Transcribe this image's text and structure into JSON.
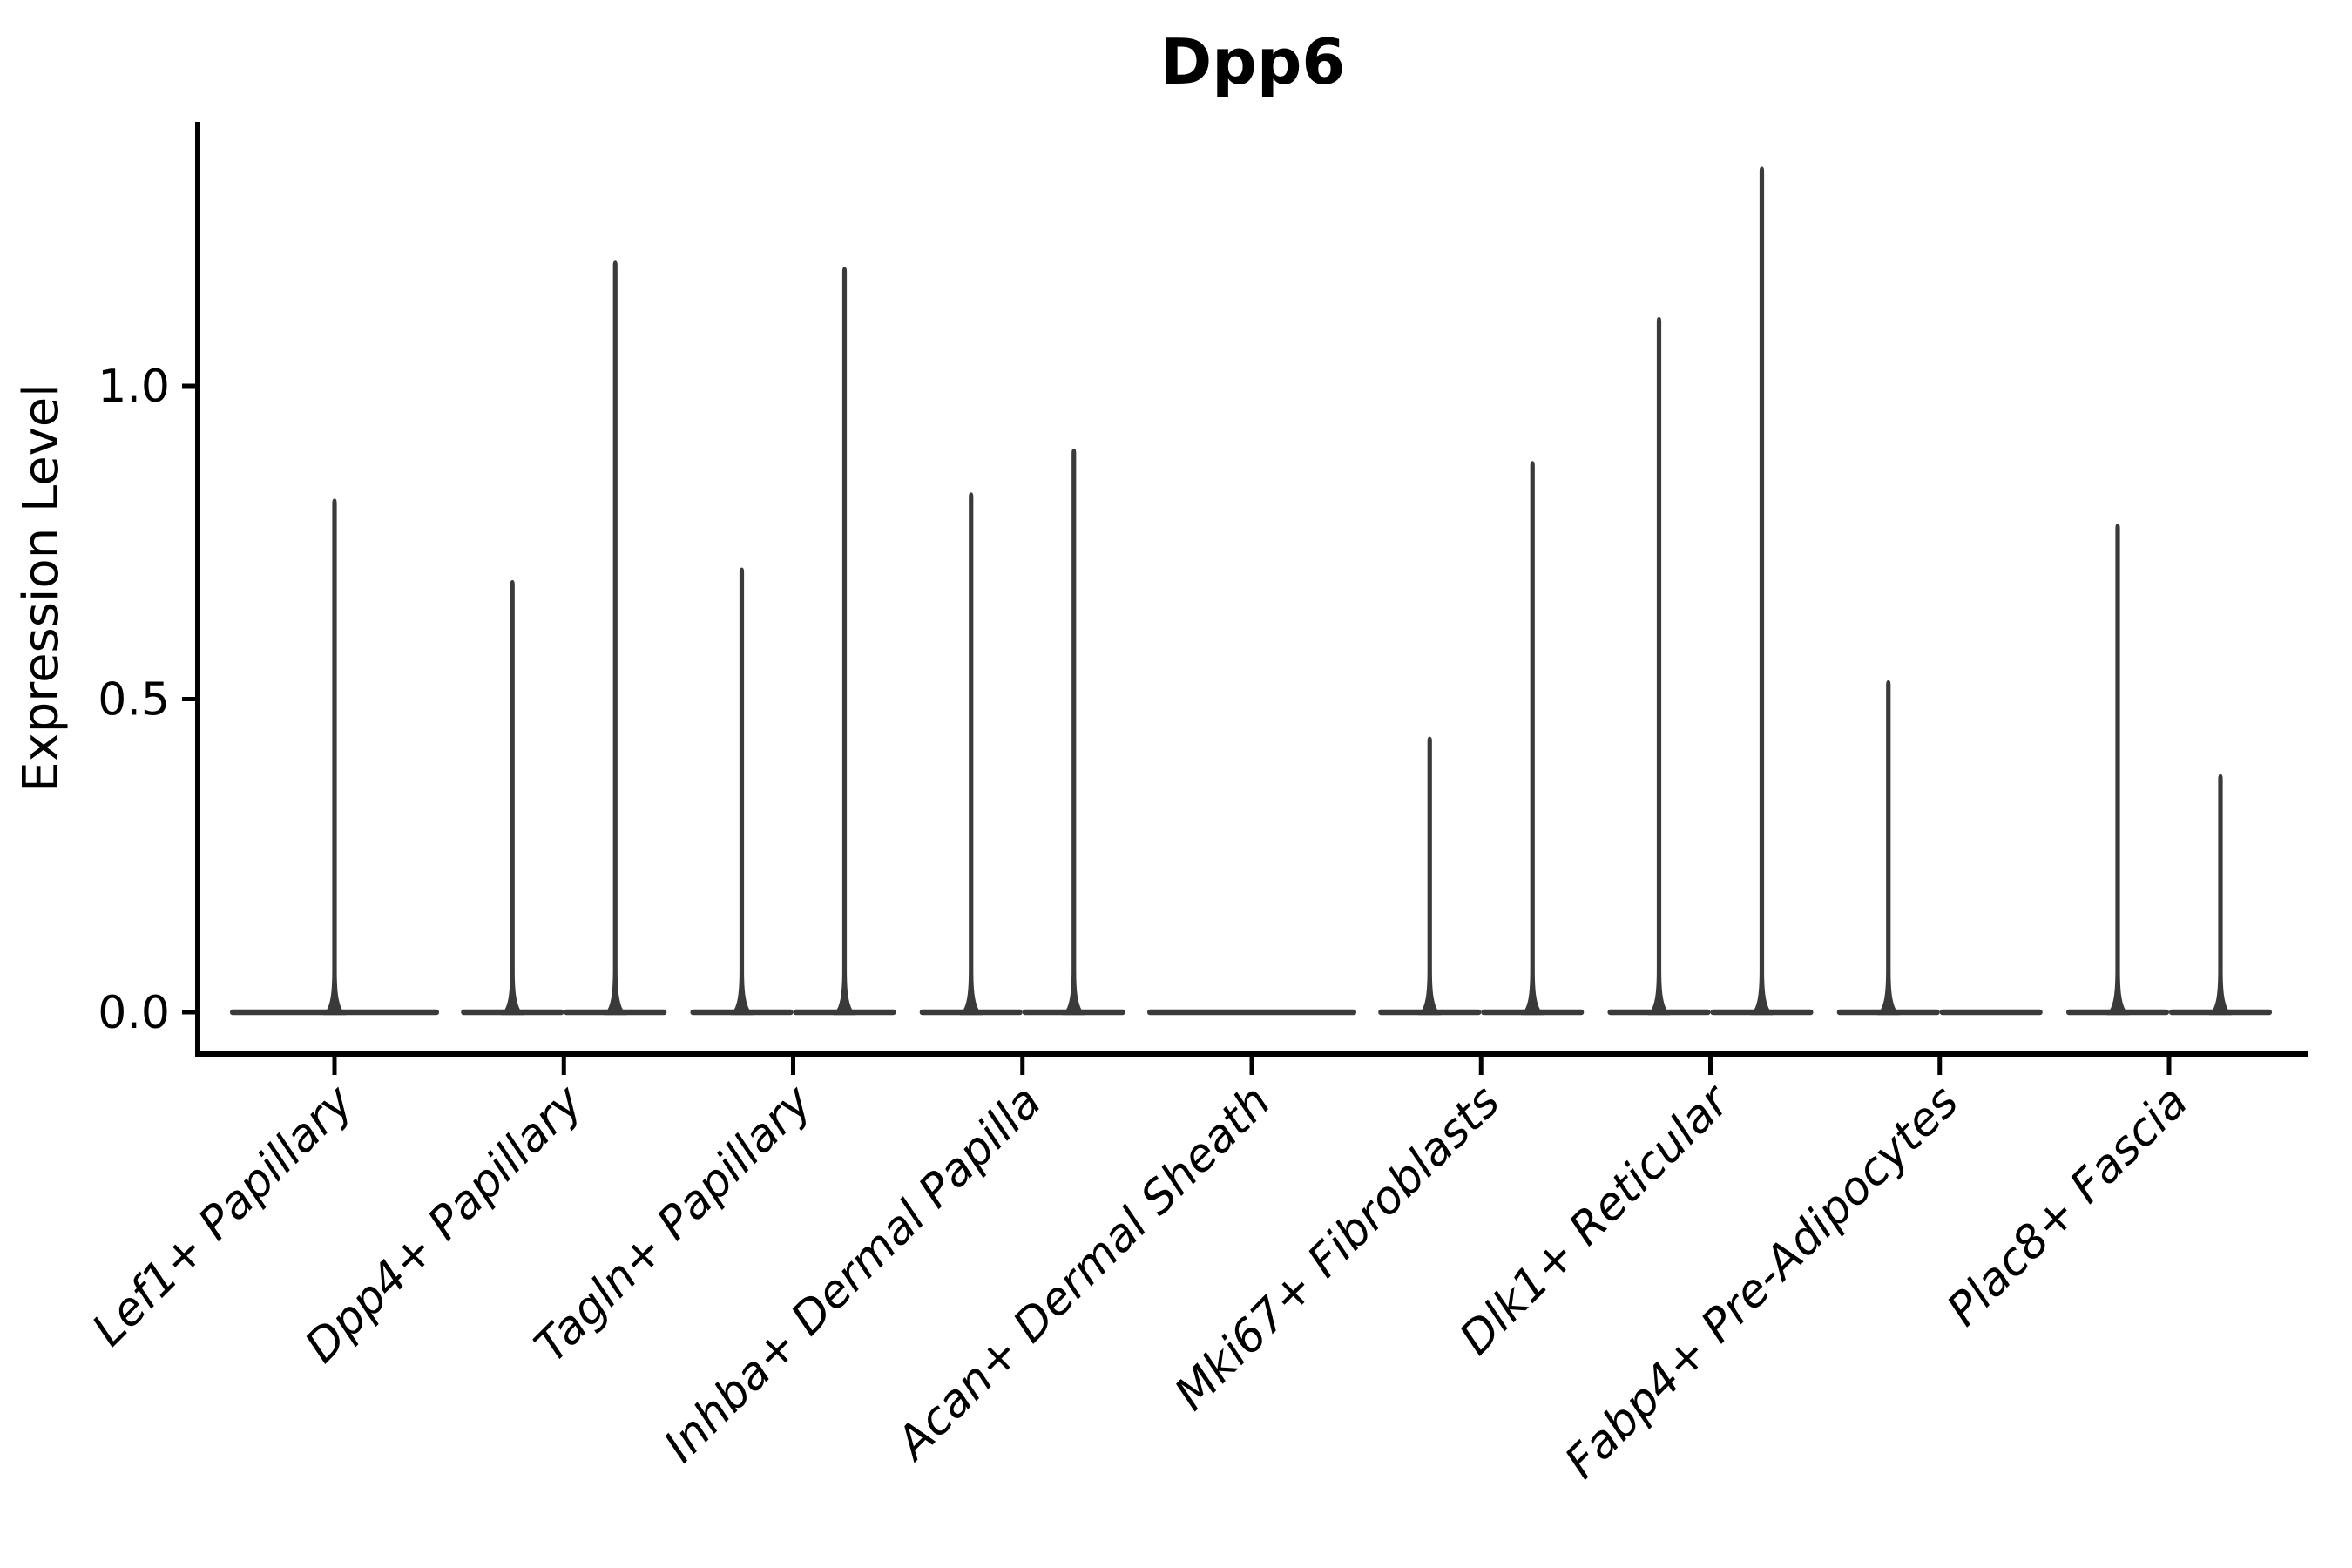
{
  "chart_data": {
    "type": "violin",
    "title": "Dpp6",
    "xlabel": "",
    "ylabel": "Expression Level",
    "ylim": [
      0,
      1.42
    ],
    "yticks": [
      {
        "value": 0.0,
        "label": "0.0"
      },
      {
        "value": 0.5,
        "label": "0.5"
      },
      {
        "value": 1.0,
        "label": "1.0"
      }
    ],
    "grid": false,
    "legend": "none",
    "violin_color": "#3a3a3a",
    "axis_color": "#000000",
    "background_color": "#ffffff",
    "categories": [
      "Lef1+ Papillary",
      "Dpp4+ Papillary",
      "Tagln+ Papillary",
      "Inhba+ Dermal Papilla",
      "Acan+ Dermal Sheath",
      "Mki67+ Fibroblasts",
      "Dlk1+ Reticular",
      "Fabp4+ Pre-Adipocytes",
      "Plac8+ Fascia"
    ],
    "groups": [
      {
        "category": "Lef1+ Papillary",
        "violins": [
          {
            "position": "center",
            "peak": 0.82
          }
        ]
      },
      {
        "category": "Dpp4+ Papillary",
        "violins": [
          {
            "position": "left",
            "peak": 0.69
          },
          {
            "position": "right",
            "peak": 1.2
          }
        ]
      },
      {
        "category": "Tagln+ Papillary",
        "violins": [
          {
            "position": "left",
            "peak": 0.71
          },
          {
            "position": "right",
            "peak": 1.19
          }
        ]
      },
      {
        "category": "Inhba+ Dermal Papilla",
        "violins": [
          {
            "position": "left",
            "peak": 0.83
          },
          {
            "position": "right",
            "peak": 0.9
          }
        ]
      },
      {
        "category": "Acan+ Dermal Sheath",
        "violins": [
          {
            "position": "center",
            "peak": 0.0
          }
        ]
      },
      {
        "category": "Mki67+ Fibroblasts",
        "violins": [
          {
            "position": "left",
            "peak": 0.44
          },
          {
            "position": "right",
            "peak": 0.88
          }
        ]
      },
      {
        "category": "Dlk1+ Reticular",
        "violins": [
          {
            "position": "left",
            "peak": 1.11
          },
          {
            "position": "right",
            "peak": 1.35
          }
        ]
      },
      {
        "category": "Fabp4+ Pre-Adipocytes",
        "violins": [
          {
            "position": "left",
            "peak": 0.53
          },
          {
            "position": "right",
            "peak": 0.0
          }
        ]
      },
      {
        "category": "Plac8+ Fascia",
        "violins": [
          {
            "position": "left",
            "peak": 0.78
          },
          {
            "position": "right",
            "peak": 0.38
          }
        ]
      }
    ]
  }
}
